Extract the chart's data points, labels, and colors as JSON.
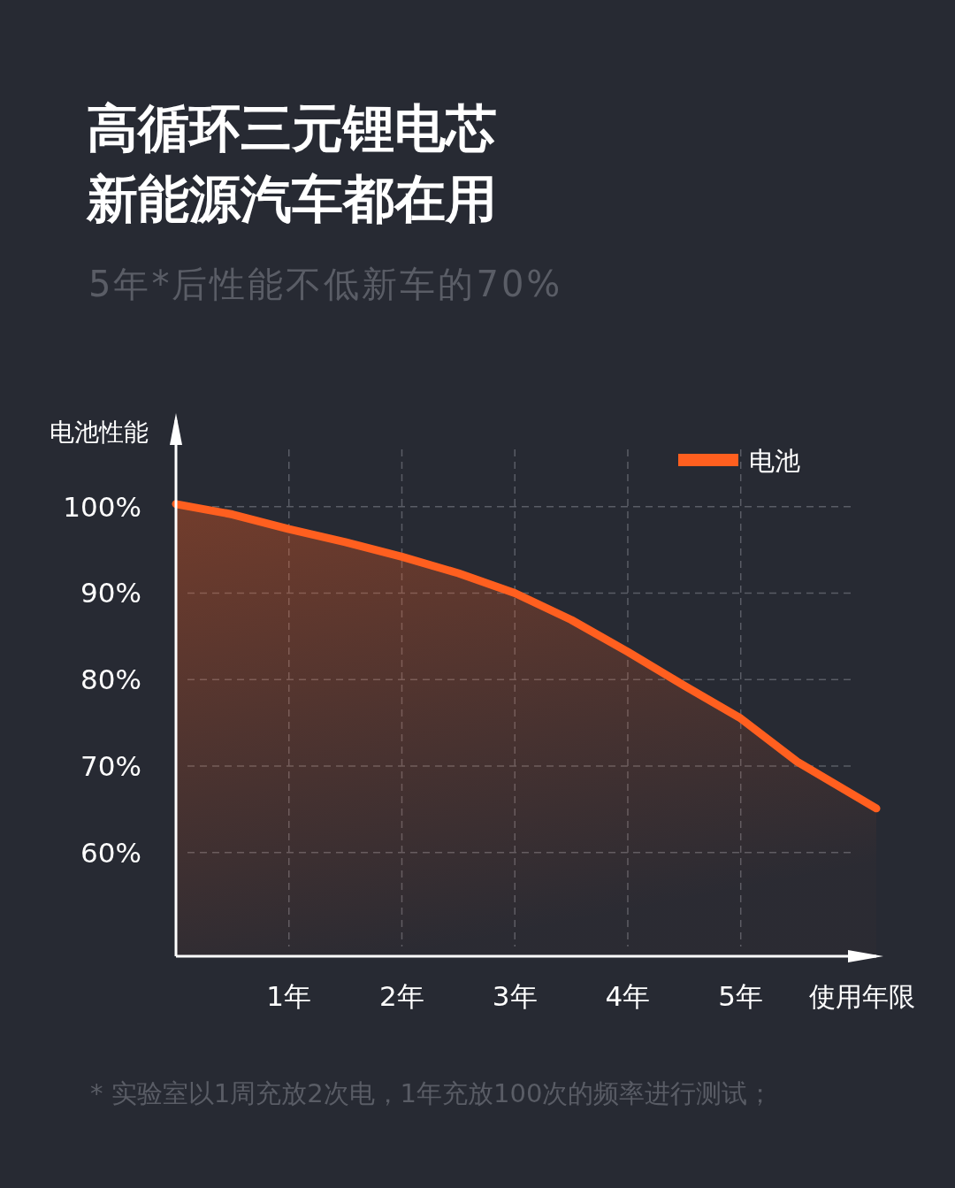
{
  "chart_data": {
    "type": "area",
    "title": "高循环三元锂电芯新能源汽车都在用",
    "subtitle": "5年*后性能不低新车的70%",
    "xlabel": "使用年限",
    "ylabel": "电池性能",
    "x": [
      0,
      0.5,
      1,
      1.5,
      2,
      2.5,
      3,
      3.5,
      4,
      4.5,
      5,
      5.5,
      6.2
    ],
    "series": [
      {
        "name": "电池",
        "color": "#ff5f1f",
        "values": [
          100.3,
          99.1,
          97.4,
          95.9,
          94.2,
          92.3,
          90.0,
          86.9,
          83.2,
          79.3,
          75.5,
          70.5,
          65.1
        ]
      }
    ],
    "xlim": [
      0,
      6.2
    ],
    "ylim": [
      48,
      110
    ],
    "xticks": [
      {
        "value": 1,
        "label": "1年"
      },
      {
        "value": 2,
        "label": "2年"
      },
      {
        "value": 3,
        "label": "3年"
      },
      {
        "value": 4,
        "label": "4年"
      },
      {
        "value": 5,
        "label": "5年"
      }
    ],
    "yticks": [
      {
        "value": 60,
        "label": "60%"
      },
      {
        "value": 70,
        "label": "70%"
      },
      {
        "value": 80,
        "label": "80%"
      },
      {
        "value": 90,
        "label": "90%"
      },
      {
        "value": 100,
        "label": "100%"
      }
    ],
    "grid": true,
    "legend": "top right",
    "line_style": "solid",
    "annotations": [
      "* 实验室以1周充放2次电，1年充放100次的频率进行测试；"
    ]
  }
}
